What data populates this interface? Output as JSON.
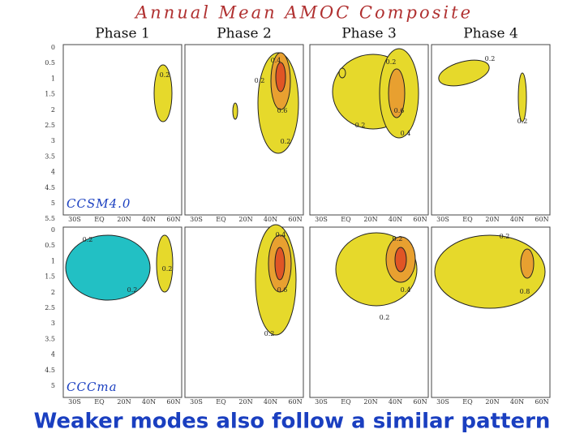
{
  "title": "Annual Mean AMOC Composite",
  "phases": [
    "Phase 1",
    "Phase 2",
    "Phase 3",
    "Phase 4"
  ],
  "xticks": [
    "30S",
    "EQ",
    "20N",
    "40N",
    "60N"
  ],
  "rows": [
    {
      "model": "CCSM4.0",
      "yticks": [
        "0",
        "0.5",
        "1",
        "1.5",
        "2",
        "2.5",
        "3",
        "3.5",
        "4",
        "4.5",
        "5",
        "5.5"
      ],
      "panels": [
        {
          "labels": [
            "0.2"
          ]
        },
        {
          "labels": [
            "0.4",
            "0.2",
            "0.6",
            "0.2"
          ]
        },
        {
          "labels": [
            "0.2",
            "0.2",
            "0.6",
            "0.4"
          ]
        },
        {
          "labels": [
            "0.2",
            "0.2"
          ]
        }
      ]
    },
    {
      "model": "CCCma",
      "yticks": [
        "0",
        "0.5",
        "1",
        "1.5",
        "2",
        "2.5",
        "3",
        "3.5",
        "4",
        "4.5",
        "5"
      ],
      "panels": [
        {
          "labels": [
            "0.2",
            "0.2",
            "0.2"
          ]
        },
        {
          "labels": [
            "0.4",
            "0.6",
            "0.2"
          ]
        },
        {
          "labels": [
            "0.2",
            "0.4",
            "0.2"
          ]
        },
        {
          "labels": [
            "0.2",
            "0.8"
          ]
        }
      ]
    }
  ],
  "caption": "Weaker modes also follow a similar pattern"
}
